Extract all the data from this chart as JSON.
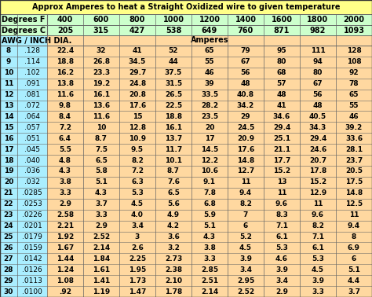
{
  "title": "Approx Amperes to heat a Straight Oxidized wire to given temperature",
  "header1": [
    "Degrees F",
    "400",
    "600",
    "800",
    "1000",
    "1200",
    "1400",
    "1600",
    "1800",
    "2000"
  ],
  "header2": [
    "Degrees C",
    "205",
    "315",
    "427",
    "538",
    "649",
    "760",
    "871",
    "982",
    "1093"
  ],
  "rows": [
    [
      "8",
      ".128",
      "22.4",
      "32",
      "41",
      "52",
      "65",
      "79",
      "95",
      "111",
      "128"
    ],
    [
      "9",
      ".114",
      "18.8",
      "26.8",
      "34.5",
      "44",
      "55",
      "67",
      "80",
      "94",
      "108"
    ],
    [
      "10",
      ".102",
      "16.2",
      "23.3",
      "29.7",
      "37.5",
      "46",
      "56",
      "68",
      "80",
      "92"
    ],
    [
      "11",
      ".091",
      "13.8",
      "19.2",
      "24.8",
      "31.5",
      "39",
      "48",
      "57",
      "67",
      "78"
    ],
    [
      "12",
      ".081",
      "11.6",
      "16.1",
      "20.8",
      "26.5",
      "33.5",
      "40.8",
      "48",
      "56",
      "65"
    ],
    [
      "13",
      ".072",
      "9.8",
      "13.6",
      "17.6",
      "22.5",
      "28.2",
      "34.2",
      "41",
      "48",
      "55"
    ],
    [
      "14",
      ".064",
      "8.4",
      "11.6",
      "15",
      "18.8",
      "23.5",
      "29",
      "34.6",
      "40.5",
      "46"
    ],
    [
      "15",
      ".057",
      "7.2",
      "10",
      "12.8",
      "16.1",
      "20",
      "24.5",
      "29.4",
      "34.3",
      "39.2"
    ],
    [
      "16",
      ".051",
      "6.4",
      "8.7",
      "10.9",
      "13.7",
      "17",
      "20.9",
      "25.1",
      "29.4",
      "33.6"
    ],
    [
      "17",
      ".045",
      "5.5",
      "7.5",
      "9.5",
      "11.7",
      "14.5",
      "17.6",
      "21.1",
      "24.6",
      "28.1"
    ],
    [
      "18",
      ".040",
      "4.8",
      "6.5",
      "8.2",
      "10.1",
      "12.2",
      "14.8",
      "17.7",
      "20.7",
      "23.7"
    ],
    [
      "19",
      ".036",
      "4.3",
      "5.8",
      "7.2",
      "8.7",
      "10.6",
      "12.7",
      "15.2",
      "17.8",
      "20.5"
    ],
    [
      "20",
      ".032",
      "3.8",
      "5.1",
      "6.3",
      "7.6",
      "9.1",
      "11",
      "13",
      "15.2",
      "17.5"
    ],
    [
      "21",
      ".0285",
      "3.3",
      "4.3",
      "5.3",
      "6.5",
      "7.8",
      "9.4",
      "11",
      "12.9",
      "14.8"
    ],
    [
      "22",
      ".0253",
      "2.9",
      "3.7",
      "4.5",
      "5.6",
      "6.8",
      "8.2",
      "9.6",
      "11",
      "12.5"
    ],
    [
      "23",
      ".0226",
      "2.58",
      "3.3",
      "4.0",
      "4.9",
      "5.9",
      "7",
      "8.3",
      "9.6",
      "11"
    ],
    [
      "24",
      ".0201",
      "2.21",
      "2.9",
      "3.4",
      "4.2",
      "5.1",
      "6",
      "7.1",
      "8.2",
      "9.4"
    ],
    [
      "25",
      ".0179",
      "1.92",
      "2.52",
      "3",
      "3.6",
      "4.3",
      "5.2",
      "6.1",
      "7.1",
      "8"
    ],
    [
      "26",
      ".0159",
      "1.67",
      "2.14",
      "2.6",
      "3.2",
      "3.8",
      "4.5",
      "5.3",
      "6.1",
      "6.9"
    ],
    [
      "27",
      ".0142",
      "1.44",
      "1.84",
      "2.25",
      "2.73",
      "3.3",
      "3.9",
      "4.6",
      "5.3",
      "6"
    ],
    [
      "28",
      ".0126",
      "1.24",
      "1.61",
      "1.95",
      "2.38",
      "2.85",
      "3.4",
      "3.9",
      "4.5",
      "5.1"
    ],
    [
      "29",
      ".0113",
      "1.08",
      "1.41",
      "1.73",
      "2.10",
      "2.51",
      "2.95",
      "3.4",
      "3.9",
      "4.4"
    ],
    [
      "30",
      ".0100",
      ".92",
      "1.19",
      "1.47",
      "1.78",
      "2.14",
      "2.52",
      "2.9",
      "3.3",
      "3.7"
    ]
  ],
  "bg_title": "#ffff88",
  "bg_header_green": "#ccffcc",
  "bg_left_cols": "#aaeeff",
  "bg_data": "#ffd8a0",
  "border_color": "#666666",
  "text_color": "#000000",
  "title_fontsize": 7.0,
  "header_fontsize": 7.0,
  "data_fontsize": 6.5,
  "fig_w": 4.74,
  "fig_h": 3.78,
  "dpi": 100
}
